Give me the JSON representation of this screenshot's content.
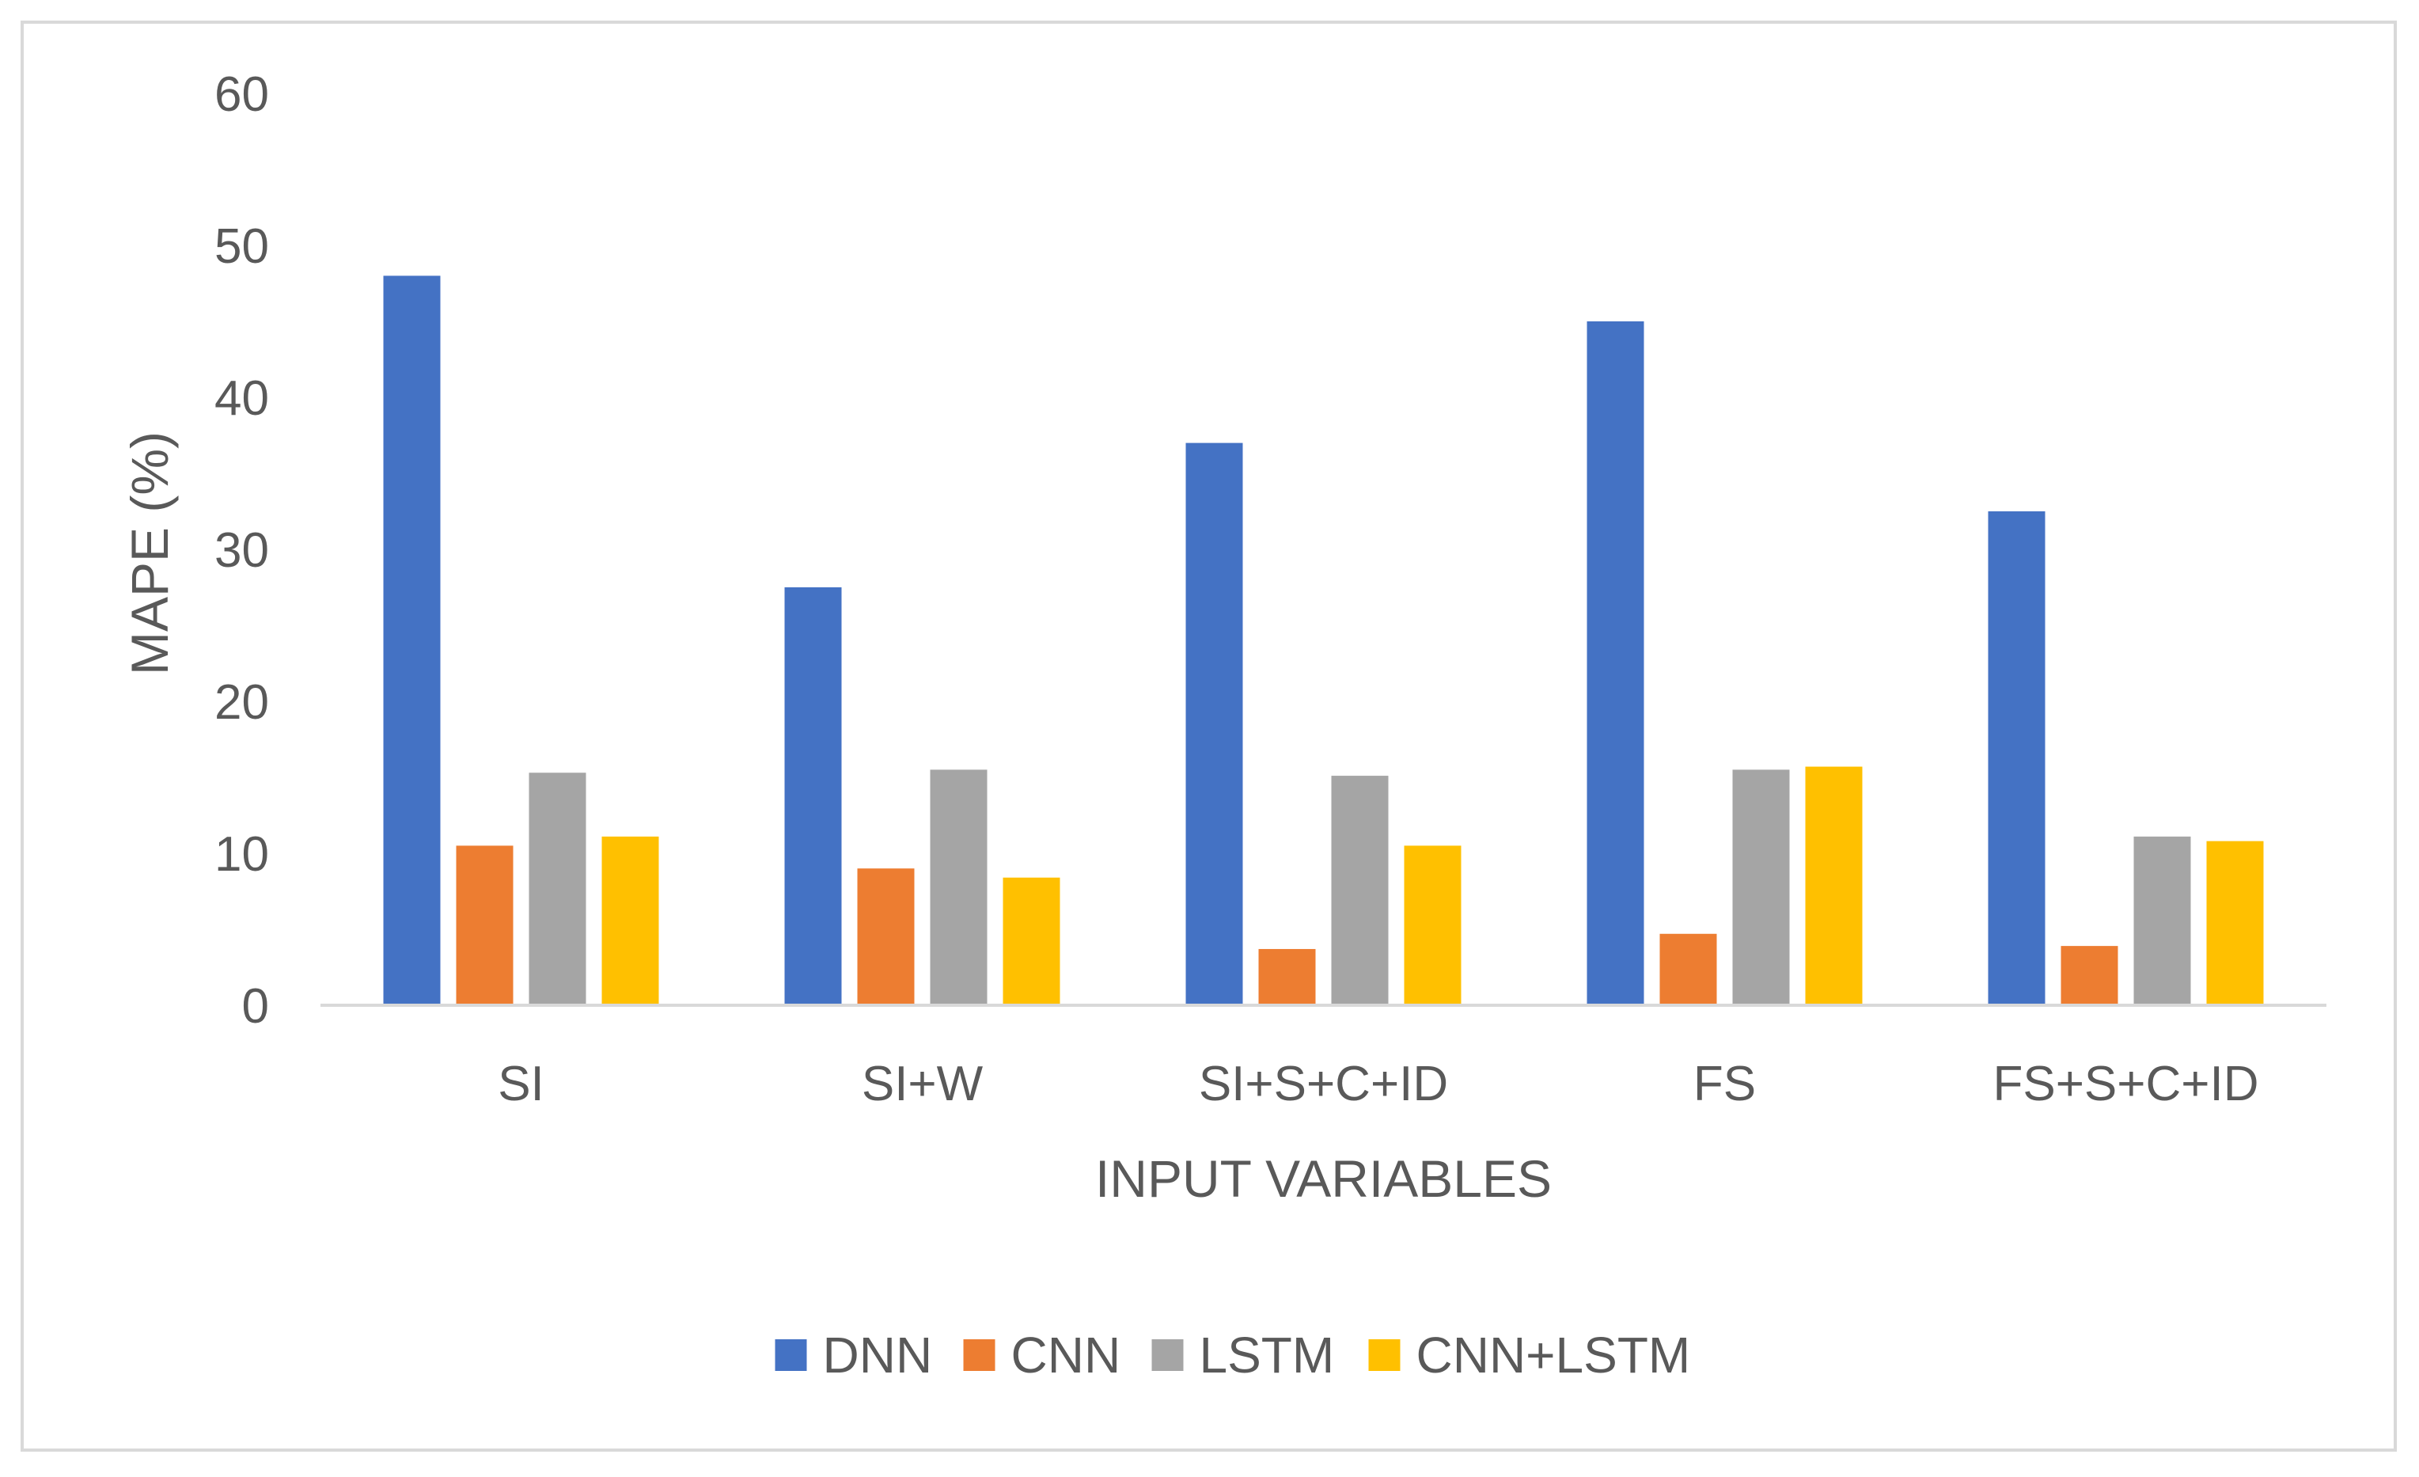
{
  "chart_data": {
    "type": "bar",
    "title": "",
    "xlabel": "INPUT VARIABLES",
    "ylabel": "MAPE (%)",
    "ylim": [
      0,
      60
    ],
    "yticks": [
      "0",
      "10",
      "20",
      "30",
      "40",
      "50",
      "60"
    ],
    "grid": false,
    "legend_position": "bottom",
    "categories": [
      "SI",
      "SI+W",
      "SI+S+C+ID",
      "FS",
      "FS+S+C+ID"
    ],
    "series": [
      {
        "name": "DNN",
        "color": "#4472c4",
        "values": [
          48,
          27.5,
          37,
          45,
          32.5
        ]
      },
      {
        "name": "CNN",
        "color": "#ed7d31",
        "values": [
          10.5,
          9,
          3.7,
          4.7,
          3.9
        ]
      },
      {
        "name": "LSTM",
        "color": "#a5a5a5",
        "values": [
          15.3,
          15.5,
          15.1,
          15.5,
          11.1
        ]
      },
      {
        "name": "CNN+LSTM",
        "color": "#ffc000",
        "values": [
          11.1,
          8.4,
          10.5,
          15.7,
          10.8
        ]
      }
    ]
  }
}
